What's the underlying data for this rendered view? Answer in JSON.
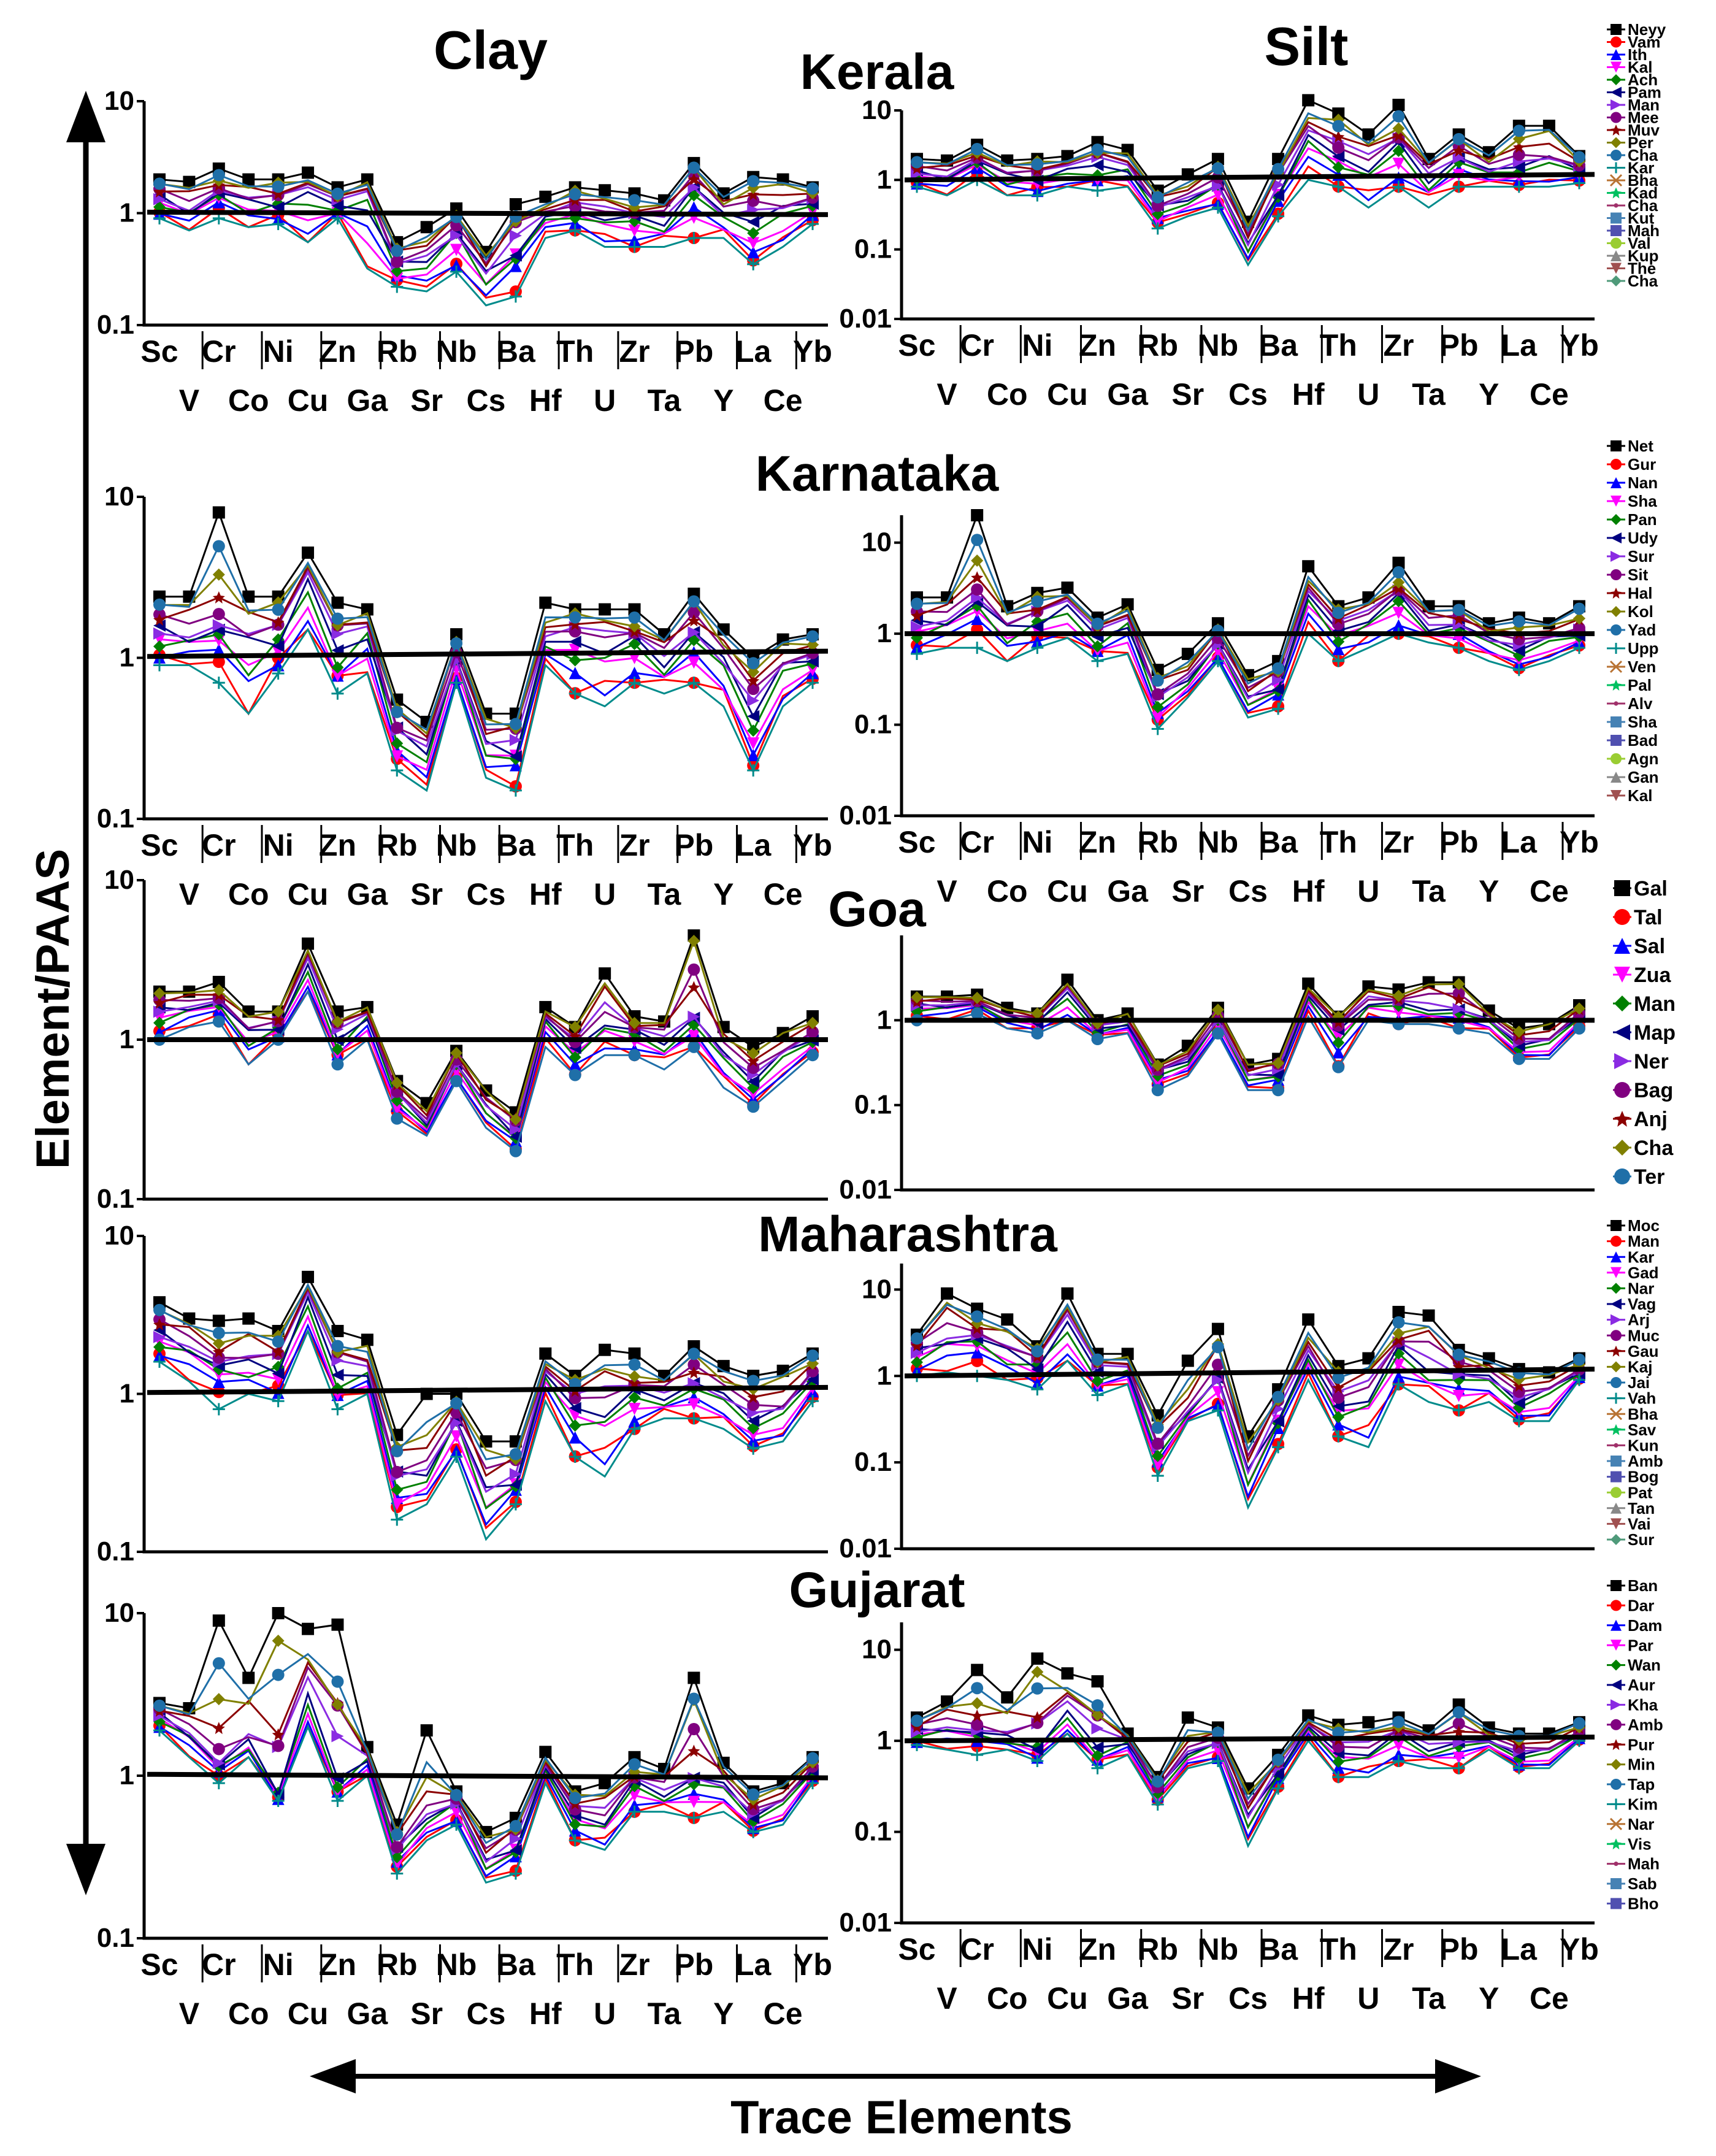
{
  "figure": {
    "col_titles": [
      "Clay",
      "Silt"
    ],
    "y_axis_label": "Element/PAAS",
    "x_axis_label": "Trace Elements",
    "x_labels_upper": [
      "Sc",
      "Cr",
      "Ni",
      "Zn",
      "Rb",
      "Nb",
      "Ba",
      "Th",
      "Zr",
      "Pb",
      "La",
      "Yb"
    ],
    "x_labels_lower": [
      "V",
      "Co",
      "Cu",
      "Ga",
      "Sr",
      "Cs",
      "Hf",
      "U",
      "Ta",
      "Y",
      "Ce"
    ]
  },
  "chart_data": [
    {
      "type": "line",
      "region": "Kerala",
      "title": "Kerala",
      "elements": [
        "Sc",
        "V",
        "Cr",
        "Co",
        "Ni",
        "Cu",
        "Zn",
        "Ga",
        "Rb",
        "Sr",
        "Nb",
        "Cs",
        "Ba",
        "Hf",
        "Th",
        "U",
        "Zr",
        "Ta",
        "Pb",
        "Y",
        "La",
        "Ce",
        "Yb"
      ],
      "legend": [
        "Neyy",
        "Vam",
        "Ith",
        "Kal",
        "Ach",
        "Pam",
        "Man",
        "Mee",
        "Muv",
        "Per",
        "Cha",
        "Kar",
        "Bha",
        "Kad",
        "Cha",
        "Kut",
        "Mah",
        "Val",
        "Kup",
        "The",
        "Cha"
      ],
      "clay": {
        "ylim": [
          0.1,
          10
        ],
        "yticks": [
          "10",
          "1",
          "0.1"
        ],
        "reference_line": [
          1.02,
          0.97
        ],
        "envelope_low": [
          0.9,
          0.7,
          0.9,
          0.75,
          0.8,
          0.55,
          0.9,
          0.32,
          0.22,
          0.2,
          0.3,
          0.15,
          0.18,
          0.6,
          0.7,
          0.5,
          0.5,
          0.5,
          0.6,
          0.6,
          0.35,
          0.5,
          0.8
        ],
        "envelope_mid": [
          1.4,
          1.1,
          1.6,
          1.3,
          1.3,
          1.5,
          1.2,
          1.5,
          0.35,
          0.45,
          0.7,
          0.3,
          0.6,
          0.9,
          1.1,
          1.0,
          0.9,
          0.9,
          1.8,
          1.0,
          1.2,
          1.1,
          1.3
        ],
        "envelope_high": [
          2.0,
          1.9,
          2.5,
          2.0,
          2.0,
          2.3,
          1.7,
          2.0,
          0.55,
          0.75,
          1.1,
          0.45,
          1.2,
          1.4,
          1.7,
          1.6,
          1.5,
          1.3,
          2.8,
          1.5,
          2.1,
          2.0,
          1.7
        ]
      },
      "silt": {
        "ylim": [
          0.01,
          10
        ],
        "yticks": [
          "10",
          "1",
          "0.1",
          "0.01"
        ],
        "reference_line": [
          1.0,
          1.2
        ],
        "envelope_low": [
          0.8,
          0.6,
          1.0,
          0.6,
          0.6,
          0.8,
          0.7,
          0.8,
          0.2,
          0.3,
          0.4,
          0.06,
          0.3,
          1.0,
          0.8,
          0.4,
          0.8,
          0.4,
          0.8,
          0.8,
          0.8,
          0.8,
          0.9
        ],
        "envelope_mid": [
          1.3,
          1.2,
          2.0,
          1.2,
          1.2,
          1.4,
          1.8,
          1.5,
          0.4,
          0.6,
          0.9,
          0.12,
          0.8,
          4.0,
          2.5,
          1.8,
          3.0,
          1.2,
          2.2,
          1.4,
          2.0,
          2.0,
          1.5
        ],
        "envelope_high": [
          2.0,
          1.9,
          3.2,
          1.9,
          2.0,
          2.2,
          3.5,
          2.7,
          0.7,
          1.2,
          2.0,
          0.25,
          2.0,
          14.0,
          9.0,
          4.5,
          12.0,
          2.0,
          4.5,
          2.5,
          6.0,
          6.0,
          2.2
        ]
      }
    },
    {
      "type": "line",
      "region": "Karnataka",
      "title": "Karnataka",
      "elements": [
        "Sc",
        "V",
        "Cr",
        "Co",
        "Ni",
        "Cu",
        "Zn",
        "Ga",
        "Rb",
        "Sr",
        "Nb",
        "Cs",
        "Ba",
        "Hf",
        "Th",
        "U",
        "Zr",
        "Ta",
        "Pb",
        "Y",
        "La",
        "Ce",
        "Yb"
      ],
      "legend": [
        "Net",
        "Gur",
        "Nan",
        "Sha",
        "Pan",
        "Udy",
        "Sur",
        "Sit",
        "Hal",
        "Kol",
        "Yad",
        "Upp",
        "Ven",
        "Pal",
        "Alv",
        "Sha",
        "Bad",
        "Agn",
        "Gan",
        "Kal"
      ],
      "clay": {
        "ylim": [
          0.1,
          10
        ],
        "yticks": [
          "10",
          "1",
          "0.1"
        ],
        "reference_line": [
          1.02,
          1.1
        ],
        "envelope_low": [
          0.9,
          0.9,
          0.7,
          0.45,
          0.8,
          1.5,
          0.6,
          0.8,
          0.2,
          0.15,
          0.7,
          0.18,
          0.15,
          0.9,
          0.6,
          0.5,
          0.7,
          0.6,
          0.7,
          0.5,
          0.2,
          0.5,
          0.7
        ],
        "envelope_mid": [
          1.5,
          1.4,
          1.6,
          1.3,
          1.4,
          3.0,
          1.2,
          1.5,
          0.35,
          0.3,
          1.0,
          0.3,
          0.3,
          1.2,
          1.4,
          1.3,
          1.3,
          1.0,
          1.5,
          1.0,
          0.6,
          0.9,
          1.0
        ],
        "envelope_high": [
          2.4,
          2.4,
          8.0,
          2.4,
          2.4,
          4.5,
          2.2,
          2.0,
          0.55,
          0.4,
          1.4,
          0.45,
          0.45,
          2.2,
          2.0,
          2.0,
          2.0,
          1.4,
          2.5,
          1.5,
          1.0,
          1.3,
          1.4
        ]
      },
      "silt": {
        "ylim": [
          0.01,
          20
        ],
        "yticks": [
          "10",
          "1",
          "0.1",
          "0.01"
        ],
        "reference_line": [
          1.0,
          1.0
        ],
        "envelope_low": [
          0.6,
          0.7,
          0.7,
          0.5,
          0.7,
          0.9,
          0.5,
          0.6,
          0.09,
          0.2,
          0.5,
          0.12,
          0.15,
          1.0,
          0.5,
          0.7,
          1.0,
          0.8,
          0.7,
          0.5,
          0.4,
          0.5,
          0.7
        ],
        "envelope_mid": [
          1.3,
          1.5,
          2.5,
          1.2,
          1.5,
          2.0,
          1.0,
          1.4,
          0.2,
          0.35,
          0.8,
          0.2,
          0.3,
          2.5,
          1.2,
          1.6,
          2.5,
          1.2,
          1.3,
          0.9,
          0.8,
          0.9,
          1.0
        ],
        "envelope_high": [
          2.5,
          2.5,
          20.0,
          2.0,
          2.8,
          3.2,
          1.5,
          2.1,
          0.4,
          0.6,
          1.3,
          0.35,
          0.5,
          5.5,
          2.0,
          2.5,
          6.0,
          2.0,
          2.0,
          1.3,
          1.5,
          1.3,
          2.0
        ]
      }
    },
    {
      "type": "line",
      "region": "Goa",
      "title": "Goa",
      "elements": [
        "Sc",
        "V",
        "Cr",
        "Co",
        "Ni",
        "Cu",
        "Zn",
        "Ga",
        "Rb",
        "Sr",
        "Nb",
        "Cs",
        "Ba",
        "Hf",
        "Th",
        "U",
        "Zr",
        "Ta",
        "Pb",
        "Y",
        "La",
        "Ce",
        "Yb"
      ],
      "legend": [
        "Gal",
        "Tal",
        "Sal",
        "Zua",
        "Man",
        "Map",
        "Ner",
        "Bag",
        "Anj",
        "Cha",
        "Ter"
      ],
      "clay": {
        "ylim": [
          0.1,
          10
        ],
        "yticks": [
          "10",
          "1",
          "0.1"
        ],
        "reference_line": [
          1.0,
          1.0
        ],
        "envelope_low": [
          1.0,
          1.2,
          1.3,
          0.7,
          1.0,
          2.0,
          0.7,
          1.0,
          0.32,
          0.25,
          0.55,
          0.28,
          0.2,
          0.9,
          0.6,
          0.8,
          0.8,
          0.65,
          0.9,
          0.5,
          0.38,
          0.55,
          0.8
        ],
        "envelope_mid": [
          1.5,
          1.6,
          1.7,
          1.1,
          1.2,
          2.8,
          1.0,
          1.4,
          0.45,
          0.3,
          0.7,
          0.38,
          0.26,
          1.3,
          0.9,
          1.3,
          1.1,
          1.0,
          1.3,
          0.8,
          0.6,
          0.8,
          1.0
        ],
        "envelope_high": [
          2.0,
          2.0,
          2.3,
          1.5,
          1.5,
          4.0,
          1.5,
          1.6,
          0.55,
          0.4,
          0.85,
          0.48,
          0.35,
          1.6,
          1.2,
          2.6,
          1.4,
          1.3,
          4.5,
          1.2,
          0.9,
          1.1,
          1.4
        ]
      },
      "silt": {
        "ylim": [
          0.01,
          10
        ],
        "yticks": [
          "1",
          "0.1",
          "0.01"
        ],
        "reference_line": [
          1.0,
          1.0
        ],
        "envelope_low": [
          1.0,
          1.0,
          1.2,
          0.8,
          0.7,
          1.0,
          0.6,
          0.7,
          0.15,
          0.22,
          0.7,
          0.15,
          0.15,
          1.1,
          0.28,
          1.0,
          0.9,
          0.9,
          0.8,
          0.7,
          0.35,
          0.35,
          0.8
        ],
        "envelope_mid": [
          1.5,
          1.5,
          1.6,
          1.1,
          1.0,
          2.0,
          0.8,
          0.9,
          0.25,
          0.35,
          1.0,
          0.22,
          0.25,
          1.8,
          0.8,
          1.6,
          1.5,
          1.4,
          1.3,
          1.0,
          0.55,
          0.55,
          1.1
        ],
        "envelope_high": [
          1.9,
          1.9,
          2.0,
          1.4,
          1.2,
          3.0,
          1.0,
          1.2,
          0.3,
          0.5,
          1.4,
          0.3,
          0.35,
          2.7,
          1.1,
          2.5,
          2.3,
          2.8,
          2.8,
          1.3,
          0.8,
          0.9,
          1.5
        ]
      }
    },
    {
      "type": "line",
      "region": "Maharashtra",
      "title": "Maharashtra",
      "elements": [
        "Sc",
        "V",
        "Cr",
        "Co",
        "Ni",
        "Cu",
        "Zn",
        "Ga",
        "Rb",
        "Sr",
        "Nb",
        "Cs",
        "Ba",
        "Hf",
        "Th",
        "U",
        "Zr",
        "Ta",
        "Pb",
        "Y",
        "La",
        "Ce",
        "Yb"
      ],
      "legend": [
        "Moc",
        "Man",
        "Kar",
        "Gad",
        "Nar",
        "Vag",
        "Arj",
        "Muc",
        "Gau",
        "Kaj",
        "Jai",
        "Vah",
        "Bha",
        "Sav",
        "Kun",
        "Amb",
        "Bog",
        "Pat",
        "Tan",
        "Vai",
        "Sur"
      ],
      "clay": {
        "ylim": [
          0.1,
          10
        ],
        "yticks": [
          "10",
          "1",
          "0.1"
        ],
        "reference_line": [
          1.02,
          1.1
        ],
        "envelope_low": [
          1.6,
          1.2,
          0.8,
          1.0,
          0.9,
          2.5,
          0.8,
          1.0,
          0.16,
          0.2,
          0.4,
          0.12,
          0.2,
          0.9,
          0.4,
          0.3,
          0.6,
          0.7,
          0.7,
          0.6,
          0.45,
          0.5,
          0.9
        ],
        "envelope_mid": [
          2.4,
          2.1,
          1.6,
          1.6,
          1.6,
          4.0,
          1.4,
          1.4,
          0.3,
          0.35,
          0.7,
          0.25,
          0.3,
          1.3,
          0.9,
          0.9,
          1.0,
          1.0,
          1.2,
          1.0,
          0.8,
          0.8,
          1.3
        ],
        "envelope_high": [
          3.8,
          3.0,
          2.9,
          3.0,
          2.5,
          5.5,
          2.5,
          2.2,
          0.55,
          1.0,
          1.0,
          0.5,
          0.5,
          1.8,
          1.3,
          1.9,
          1.8,
          1.3,
          2.0,
          1.5,
          1.3,
          1.4,
          1.8
        ]
      },
      "silt": {
        "ylim": [
          0.01,
          20
        ],
        "yticks": [
          "10",
          "1",
          "0.1",
          "0.01"
        ],
        "reference_line": [
          1.0,
          1.2
        ],
        "envelope_low": [
          1.0,
          1.1,
          1.0,
          0.9,
          0.7,
          1.5,
          0.6,
          0.8,
          0.07,
          0.3,
          0.4,
          0.03,
          0.15,
          0.9,
          0.2,
          0.15,
          0.8,
          0.5,
          0.4,
          0.5,
          0.3,
          0.3,
          0.9
        ],
        "envelope_mid": [
          2.0,
          3.0,
          3.0,
          2.0,
          1.5,
          4.0,
          1.2,
          1.2,
          0.15,
          0.4,
          1.0,
          0.08,
          0.4,
          1.6,
          0.5,
          0.7,
          2.0,
          1.5,
          1.1,
          1.0,
          0.6,
          0.7,
          1.1
        ],
        "envelope_high": [
          3.0,
          9.0,
          6.0,
          4.5,
          2.2,
          9.0,
          1.8,
          1.8,
          0.35,
          1.5,
          3.5,
          0.2,
          0.7,
          4.5,
          1.3,
          1.6,
          5.5,
          5.0,
          2.0,
          1.6,
          1.2,
          1.1,
          1.6
        ]
      }
    },
    {
      "type": "line",
      "region": "Gujarat",
      "title": "Gujarat",
      "elements": [
        "Sc",
        "V",
        "Cr",
        "Co",
        "Ni",
        "Cu",
        "Zn",
        "Ga",
        "Rb",
        "Sr",
        "Nb",
        "Cs",
        "Ba",
        "Hf",
        "Th",
        "U",
        "Zr",
        "Ta",
        "Pb",
        "Y",
        "La",
        "Ce",
        "Yb"
      ],
      "legend": [
        "Ban",
        "Dar",
        "Dam",
        "Par",
        "Wan",
        "Aur",
        "Kha",
        "Amb",
        "Pur",
        "Min",
        "Tap",
        "Kim",
        "Nar",
        "Vis",
        "Mah",
        "Sab",
        "Bho"
      ],
      "clay": {
        "ylim": [
          0.1,
          10
        ],
        "yticks": [
          "10",
          "1",
          "0.1"
        ],
        "reference_line": [
          1.02,
          0.97
        ],
        "envelope_low": [
          1.9,
          1.3,
          0.9,
          1.3,
          0.7,
          2.0,
          0.7,
          1.0,
          0.25,
          0.4,
          0.5,
          0.22,
          0.25,
          0.9,
          0.4,
          0.35,
          0.6,
          0.6,
          0.55,
          0.6,
          0.45,
          0.5,
          0.9
        ],
        "envelope_mid": [
          2.4,
          1.9,
          1.2,
          1.6,
          0.8,
          3.0,
          1.0,
          1.3,
          0.35,
          0.6,
          0.7,
          0.3,
          0.4,
          1.1,
          0.6,
          0.55,
          0.9,
          0.8,
          1.0,
          0.9,
          0.6,
          0.7,
          1.1
        ],
        "envelope_high": [
          2.8,
          2.6,
          9.0,
          4.0,
          10.0,
          8.0,
          8.5,
          1.5,
          0.5,
          1.9,
          0.8,
          0.45,
          0.55,
          1.4,
          0.8,
          0.9,
          1.3,
          1.1,
          4.0,
          1.2,
          0.8,
          0.9,
          1.3
        ]
      },
      "silt": {
        "ylim": [
          0.01,
          20
        ],
        "yticks": [
          "10",
          "1",
          "0.1",
          "0.01"
        ],
        "reference_line": [
          1.0,
          1.1
        ],
        "envelope_low": [
          0.9,
          0.8,
          0.7,
          0.8,
          0.6,
          1.2,
          0.5,
          0.7,
          0.2,
          0.5,
          0.6,
          0.07,
          0.3,
          1.0,
          0.4,
          0.4,
          0.6,
          0.5,
          0.5,
          0.8,
          0.5,
          0.5,
          1.0
        ],
        "envelope_mid": [
          1.3,
          1.5,
          1.3,
          1.1,
          0.9,
          2.0,
          0.9,
          1.0,
          0.3,
          0.8,
          1.0,
          0.15,
          0.5,
          1.4,
          0.8,
          0.8,
          1.2,
          0.9,
          1.0,
          1.0,
          0.8,
          0.8,
          1.2
        ],
        "envelope_high": [
          1.8,
          2.7,
          6.0,
          3.0,
          8.0,
          5.5,
          4.5,
          1.2,
          0.4,
          1.8,
          1.4,
          0.3,
          0.7,
          1.9,
          1.5,
          1.6,
          1.8,
          1.3,
          2.5,
          1.4,
          1.2,
          1.2,
          1.6
        ]
      }
    }
  ]
}
